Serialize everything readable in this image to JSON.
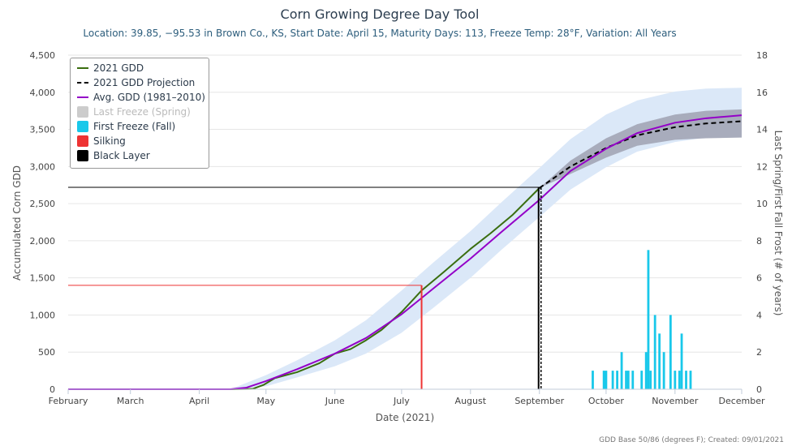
{
  "chart_data": {
    "type": "line",
    "title": "Corn Growing Degree Day Tool",
    "subtitle": "Location: 39.85, −95.53 in Brown Co., KS, Start Date: April 15, Maturity Days: 113, Freeze Temp: 28°F, Variation: All Years",
    "xlabel": "Date (2021)",
    "ylabel_left": "Accumulated Corn GDD",
    "ylabel_right": "Last Spring/First Fall Frost (# of years)",
    "x_ticks": [
      "February",
      "March",
      "April",
      "May",
      "June",
      "July",
      "August",
      "September",
      "October",
      "November",
      "December"
    ],
    "ylim_left": [
      0,
      4500
    ],
    "yticks_left": [
      "0",
      "500",
      "1,000",
      "1,500",
      "2,000",
      "2,500",
      "3,000",
      "3,500",
      "4,000",
      "4,500"
    ],
    "ylim_right": [
      0,
      18
    ],
    "yticks_right": [
      "0",
      "2",
      "4",
      "6",
      "8",
      "10",
      "12",
      "14",
      "16",
      "18"
    ],
    "grid": true,
    "legend_position": "top-left",
    "credit": "GDD Base 50/86 (degrees F); Created: 09/01/2021",
    "legend": [
      {
        "label": "2021 GDD",
        "color": "#3a6e0f",
        "symbol": "line"
      },
      {
        "label": "2021 GDD Projection",
        "color": "#000000",
        "symbol": "dash"
      },
      {
        "label": "Avg. GDD (1981–2010)",
        "color": "#9400c8",
        "symbol": "line"
      },
      {
        "label": "Last Freeze (Spring)",
        "color": "#cccccc",
        "symbol": "box",
        "hidden": true
      },
      {
        "label": "First Freeze (Fall)",
        "color": "#19c8ea",
        "symbol": "box"
      },
      {
        "label": "Silking",
        "color": "#ee3333",
        "symbol": "box"
      },
      {
        "label": "Black Layer",
        "color": "#000000",
        "symbol": "box"
      }
    ],
    "series": [
      {
        "name": "2021 GDD",
        "color": "#3a6e0f",
        "points": [
          [
            "2021-02-01",
            0
          ],
          [
            "2021-04-15",
            0
          ],
          [
            "2021-04-25",
            5
          ],
          [
            "2021-04-30",
            60
          ],
          [
            "2021-05-05",
            150
          ],
          [
            "2021-05-15",
            230
          ],
          [
            "2021-05-25",
            350
          ],
          [
            "2021-06-01",
            480
          ],
          [
            "2021-06-08",
            540
          ],
          [
            "2021-06-15",
            660
          ],
          [
            "2021-06-22",
            800
          ],
          [
            "2021-07-01",
            1040
          ],
          [
            "2021-07-10",
            1330
          ],
          [
            "2021-07-20",
            1580
          ],
          [
            "2021-08-01",
            1890
          ],
          [
            "2021-08-10",
            2100
          ],
          [
            "2021-08-20",
            2350
          ],
          [
            "2021-09-01",
            2710
          ]
        ]
      },
      {
        "name": "2021 GDD Projection",
        "color": "#000000",
        "points": [
          [
            "2021-09-01",
            2710
          ],
          [
            "2021-09-15",
            3000
          ],
          [
            "2021-10-01",
            3250
          ],
          [
            "2021-10-15",
            3420
          ],
          [
            "2021-11-01",
            3530
          ],
          [
            "2021-11-15",
            3580
          ],
          [
            "2021-12-01",
            3610
          ]
        ]
      },
      {
        "name": "Avg. GDD (1981–2010)",
        "color": "#9400c8",
        "points": [
          [
            "2021-02-01",
            0
          ],
          [
            "2021-04-15",
            0
          ],
          [
            "2021-04-22",
            20
          ],
          [
            "2021-05-01",
            110
          ],
          [
            "2021-05-15",
            270
          ],
          [
            "2021-06-01",
            480
          ],
          [
            "2021-06-15",
            690
          ],
          [
            "2021-07-01",
            1010
          ],
          [
            "2021-07-15",
            1350
          ],
          [
            "2021-08-01",
            1760
          ],
          [
            "2021-08-15",
            2120
          ],
          [
            "2021-09-01",
            2550
          ],
          [
            "2021-09-15",
            2940
          ],
          [
            "2021-10-01",
            3240
          ],
          [
            "2021-10-15",
            3450
          ],
          [
            "2021-11-01",
            3590
          ],
          [
            "2021-11-15",
            3650
          ],
          [
            "2021-12-01",
            3690
          ]
        ]
      }
    ],
    "range_bands": [
      {
        "name": "variation outer",
        "color": "#dbe8f8",
        "points": [
          [
            "2021-04-15",
            0,
            0
          ],
          [
            "2021-05-01",
            40,
            190
          ],
          [
            "2021-05-15",
            160,
            390
          ],
          [
            "2021-06-01",
            310,
            660
          ],
          [
            "2021-06-15",
            480,
            930
          ],
          [
            "2021-07-01",
            760,
            1330
          ],
          [
            "2021-07-15",
            1090,
            1700
          ],
          [
            "2021-08-01",
            1500,
            2130
          ],
          [
            "2021-08-15",
            1880,
            2520
          ],
          [
            "2021-09-01",
            2320,
            2980
          ],
          [
            "2021-09-15",
            2690,
            3370
          ],
          [
            "2021-10-01",
            2990,
            3700
          ],
          [
            "2021-10-15",
            3200,
            3890
          ],
          [
            "2021-11-01",
            3330,
            4010
          ],
          [
            "2021-11-15",
            3390,
            4050
          ],
          [
            "2021-12-01",
            3420,
            4060
          ]
        ]
      },
      {
        "name": "projection range",
        "color": "#a8acbc",
        "points": [
          [
            "2021-09-01",
            2710,
            2710
          ],
          [
            "2021-09-15",
            2900,
            3080
          ],
          [
            "2021-10-01",
            3120,
            3380
          ],
          [
            "2021-10-15",
            3280,
            3570
          ],
          [
            "2021-11-01",
            3360,
            3700
          ],
          [
            "2021-11-15",
            3380,
            3750
          ],
          [
            "2021-12-01",
            3390,
            3770
          ]
        ]
      }
    ],
    "markers": {
      "silking": {
        "date": "2021-07-10",
        "gdd": 1400,
        "color": "#ee3333"
      },
      "black_layer": {
        "date": "2021-09-01",
        "gdd": 2720,
        "color": "#000000"
      }
    },
    "first_freeze_fall": [
      {
        "date": "2021-09-25",
        "years": 1
      },
      {
        "date": "2021-09-30",
        "years": 1
      },
      {
        "date": "2021-10-01",
        "years": 1
      },
      {
        "date": "2021-10-04",
        "years": 1
      },
      {
        "date": "2021-10-06",
        "years": 1
      },
      {
        "date": "2021-10-08",
        "years": 2
      },
      {
        "date": "2021-10-10",
        "years": 1
      },
      {
        "date": "2021-10-11",
        "years": 1
      },
      {
        "date": "2021-10-13",
        "years": 1
      },
      {
        "date": "2021-10-17",
        "years": 1
      },
      {
        "date": "2021-10-19",
        "years": 2
      },
      {
        "date": "2021-10-20",
        "years": 7.5
      },
      {
        "date": "2021-10-21",
        "years": 1
      },
      {
        "date": "2021-10-23",
        "years": 4
      },
      {
        "date": "2021-10-25",
        "years": 3
      },
      {
        "date": "2021-10-27",
        "years": 2
      },
      {
        "date": "2021-10-30",
        "years": 4
      },
      {
        "date": "2021-11-01",
        "years": 1
      },
      {
        "date": "2021-11-03",
        "years": 1
      },
      {
        "date": "2021-11-04",
        "years": 3
      },
      {
        "date": "2021-11-06",
        "years": 1
      },
      {
        "date": "2021-11-08",
        "years": 1
      }
    ]
  }
}
